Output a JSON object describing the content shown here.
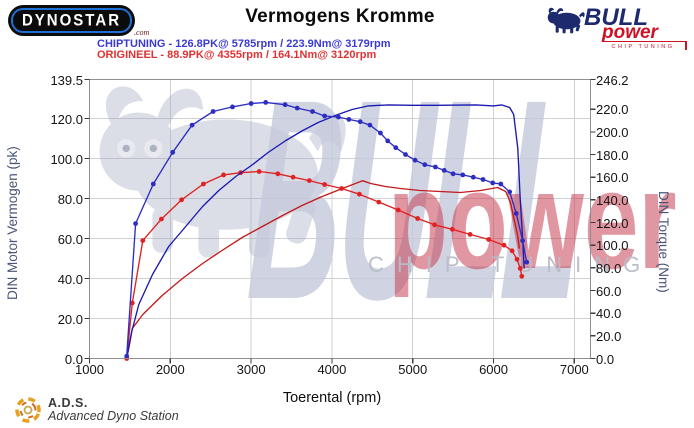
{
  "header": {
    "title": "Vermogens Kromme"
  },
  "logos": {
    "dynostar_text": "Dynostar",
    "dynostar_suffix": ".com",
    "bull_line1": "BULL",
    "bull_line2": "power",
    "bull_line3": "CHIP TUNING"
  },
  "legend": {
    "chiptuning": "CHIPTUNING - 126.8PK@ 5785rpm / 223.9Nm@ 3179rpm",
    "origineel": "ORIGINEEL - 88.9PK@ 4355rpm / 164.1Nm@ 3120rpm"
  },
  "watermark": {
    "bull_text": "BULL",
    "power_text": "power",
    "chip_tuning": "CHIP TUNING"
  },
  "footer": {
    "ads_abbr": "A.D.S.",
    "ads_name": "Advanced Dyno Station"
  },
  "colors": {
    "chiptuning_blue": "#3a3ad1",
    "origineel_red": "#e03232",
    "grid": "#cfd0d4",
    "frame": "#8f8f93",
    "axis_title": "#4a5578",
    "watermark_gray_blue": "#c5cadb",
    "watermark_red": "#c63a4d",
    "logo_navy": "#1d2b6e",
    "logo_red": "#cf1126"
  },
  "chart_data": {
    "type": "line",
    "title": "Vermogens Kromme",
    "xlabel": "Toerental (rpm)",
    "ylabel_left": "DIN Motor Vermogen (pk)",
    "ylabel_right": "DIN Torque (Nm)",
    "xlim": [
      1000,
      7200
    ],
    "ylim_left": [
      0,
      139.5
    ],
    "ylim_right": [
      0,
      246.2
    ],
    "grid": true,
    "x_ticks": [
      {
        "value": 1000,
        "label": "1000"
      },
      {
        "value": 2000,
        "label": "2000"
      },
      {
        "value": 3000,
        "label": "3000"
      },
      {
        "value": 4000,
        "label": "4000"
      },
      {
        "value": 5000,
        "label": "5000"
      },
      {
        "value": 6000,
        "label": "6000"
      },
      {
        "value": 7000,
        "label": "7000"
      }
    ],
    "left_ticks": [
      {
        "value": 139.5,
        "label": "139.5"
      },
      {
        "value": 120,
        "label": "120.0"
      },
      {
        "value": 100,
        "label": "100.0"
      },
      {
        "value": 80,
        "label": "80.0"
      },
      {
        "value": 60,
        "label": "60.0"
      },
      {
        "value": 40,
        "label": "40.0"
      },
      {
        "value": 20,
        "label": "20.0"
      },
      {
        "value": 0,
        "label": "0.0"
      }
    ],
    "right_ticks": [
      {
        "value": 246.2,
        "label": "246.2"
      },
      {
        "value": 220,
        "label": "220.0"
      },
      {
        "value": 200,
        "label": "200.0"
      },
      {
        "value": 180,
        "label": "180.0"
      },
      {
        "value": 160,
        "label": "160.0"
      },
      {
        "value": 140,
        "label": "140.0"
      },
      {
        "value": 120,
        "label": "120.0"
      },
      {
        "value": 100,
        "label": "100.0"
      },
      {
        "value": 80,
        "label": "80.0"
      },
      {
        "value": 60,
        "label": "60.0"
      },
      {
        "value": 40,
        "label": "40.0"
      },
      {
        "value": 20,
        "label": "20.0"
      },
      {
        "value": 0,
        "label": "0.0"
      }
    ],
    "stated_peaks": {
      "chiptuning": {
        "power_pk": 126.8,
        "power_rpm": 5785,
        "torque_nm": 223.9,
        "torque_rpm": 3179
      },
      "origineel": {
        "power_pk": 88.9,
        "power_rpm": 4355,
        "torque_nm": 164.1,
        "torque_rpm": 3120
      }
    },
    "series": [
      {
        "name": "origineel_power",
        "axis": "left",
        "unit": "pk",
        "color": "#c11b1b",
        "markers": false,
        "points": [
          [
            1460,
            0
          ],
          [
            1500,
            8
          ],
          [
            1530,
            15
          ],
          [
            1660,
            22
          ],
          [
            1900,
            31.5
          ],
          [
            2150,
            40
          ],
          [
            2400,
            47.5
          ],
          [
            2640,
            54
          ],
          [
            2890,
            60.5
          ],
          [
            3140,
            66
          ],
          [
            3390,
            71.5
          ],
          [
            3630,
            76.5
          ],
          [
            3880,
            81
          ],
          [
            4130,
            85
          ],
          [
            4290,
            87.5
          ],
          [
            4380,
            88.9
          ],
          [
            4480,
            87.5
          ],
          [
            4660,
            86
          ],
          [
            4850,
            85
          ],
          [
            5090,
            84
          ],
          [
            5340,
            83.5
          ],
          [
            5590,
            83
          ],
          [
            5840,
            84
          ],
          [
            6050,
            85.5
          ],
          [
            6150,
            83.5
          ],
          [
            6210,
            78
          ],
          [
            6250,
            70.5
          ],
          [
            6280,
            65
          ],
          [
            6300,
            61
          ],
          [
            6320,
            55
          ]
        ]
      },
      {
        "name": "origineel_torque",
        "axis": "right",
        "unit": "Nm",
        "color": "#e02222",
        "markers": true,
        "points": [
          [
            1460,
            0
          ],
          [
            1530,
            49
          ],
          [
            1660,
            104
          ],
          [
            1890,
            123
          ],
          [
            2140,
            140
          ],
          [
            2410,
            154
          ],
          [
            2660,
            162
          ],
          [
            2870,
            164
          ],
          [
            3100,
            165
          ],
          [
            3330,
            163
          ],
          [
            3520,
            160
          ],
          [
            3720,
            157
          ],
          [
            3910,
            153.5
          ],
          [
            4120,
            150
          ],
          [
            4340,
            145
          ],
          [
            4580,
            138
          ],
          [
            4820,
            131
          ],
          [
            5060,
            123.5
          ],
          [
            5270,
            118
          ],
          [
            5490,
            114
          ],
          [
            5710,
            109.5
          ],
          [
            5940,
            105
          ],
          [
            6130,
            100
          ],
          [
            6230,
            95
          ],
          [
            6290,
            87.5
          ],
          [
            6330,
            79.5
          ],
          [
            6350,
            72.5
          ]
        ]
      },
      {
        "name": "chiptuning_power",
        "axis": "left",
        "unit": "pk",
        "color": "#1a1ab0",
        "markers": false,
        "points": [
          [
            1460,
            0
          ],
          [
            1520,
            13
          ],
          [
            1610,
            27
          ],
          [
            1780,
            42
          ],
          [
            1980,
            56
          ],
          [
            2190,
            66
          ],
          [
            2400,
            76
          ],
          [
            2600,
            84
          ],
          [
            2810,
            91
          ],
          [
            3020,
            97
          ],
          [
            3210,
            103
          ],
          [
            3430,
            109
          ],
          [
            3640,
            114
          ],
          [
            3830,
            118
          ],
          [
            4040,
            121.5
          ],
          [
            4250,
            124.5
          ],
          [
            4450,
            126.3
          ],
          [
            4700,
            126.8
          ],
          [
            5000,
            126.6
          ],
          [
            5300,
            126.6
          ],
          [
            5600,
            126.7
          ],
          [
            5785,
            126.8
          ],
          [
            6000,
            126.3
          ],
          [
            6100,
            126.8
          ],
          [
            6200,
            125.5
          ],
          [
            6250,
            122
          ],
          [
            6300,
            105
          ],
          [
            6330,
            80
          ],
          [
            6360,
            60
          ],
          [
            6380,
            45
          ]
        ]
      },
      {
        "name": "chiptuning_torque",
        "axis": "right",
        "unit": "Nm",
        "color": "#2d2dc4",
        "markers": true,
        "points": [
          [
            1460,
            2
          ],
          [
            1570,
            119
          ],
          [
            1790,
            154
          ],
          [
            2030,
            182
          ],
          [
            2270,
            206
          ],
          [
            2530,
            218
          ],
          [
            2770,
            222
          ],
          [
            3000,
            225
          ],
          [
            3180,
            226
          ],
          [
            3420,
            224
          ],
          [
            3570,
            221
          ],
          [
            3760,
            218
          ],
          [
            3910,
            214
          ],
          [
            4080,
            213
          ],
          [
            4210,
            211
          ],
          [
            4350,
            209
          ],
          [
            4470,
            206
          ],
          [
            4600,
            199
          ],
          [
            4690,
            192
          ],
          [
            4790,
            186
          ],
          [
            4910,
            180
          ],
          [
            5030,
            175
          ],
          [
            5150,
            171
          ],
          [
            5280,
            169
          ],
          [
            5390,
            166
          ],
          [
            5500,
            163
          ],
          [
            5620,
            162
          ],
          [
            5750,
            160
          ],
          [
            5870,
            158
          ],
          [
            5990,
            155
          ],
          [
            6090,
            154
          ],
          [
            6200,
            147
          ],
          [
            6280,
            128
          ],
          [
            6360,
            104
          ],
          [
            6410,
            85
          ]
        ]
      }
    ]
  }
}
